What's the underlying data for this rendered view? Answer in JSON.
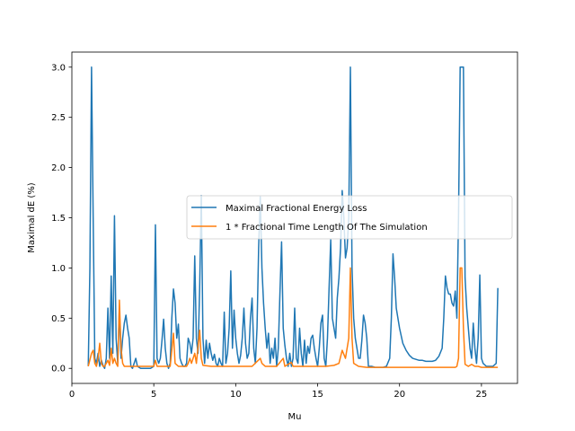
{
  "chart_data": {
    "type": "line",
    "title": "",
    "xlabel": "Mu",
    "ylabel": "Maximal dE (%)",
    "xlim": [
      0,
      27.2
    ],
    "ylim": [
      -0.15,
      3.15
    ],
    "xticks": [
      0,
      5,
      10,
      15,
      20,
      25
    ],
    "xtick_labels": [
      "0",
      "5",
      "10",
      "15",
      "20",
      "25"
    ],
    "yticks": [
      0.0,
      0.5,
      1.0,
      1.5,
      2.0,
      2.5,
      3.0
    ],
    "ytick_labels": [
      "0.0",
      "0.5",
      "1.0",
      "1.5",
      "2.0",
      "2.5",
      "3.0"
    ],
    "grid": false,
    "legend_position": "center-right",
    "series": [
      {
        "name": "Maximal Fractional Energy Loss",
        "color": "#1f77b4",
        "points": [
          [
            1.0,
            0.02
          ],
          [
            1.1,
            1.0
          ],
          [
            1.2,
            3.0
          ],
          [
            1.3,
            1.5
          ],
          [
            1.4,
            0.1
          ],
          [
            1.5,
            0.05
          ],
          [
            1.6,
            0.15
          ],
          [
            1.7,
            0.02
          ],
          [
            1.8,
            0.08
          ],
          [
            1.9,
            0.03
          ],
          [
            2.0,
            0.0
          ],
          [
            2.1,
            0.1
          ],
          [
            2.2,
            0.6
          ],
          [
            2.3,
            0.1
          ],
          [
            2.4,
            0.92
          ],
          [
            2.5,
            0.15
          ],
          [
            2.6,
            1.52
          ],
          [
            2.7,
            0.3
          ],
          [
            2.8,
            0.05
          ],
          [
            2.9,
            0.6
          ],
          [
            3.0,
            0.1
          ],
          [
            3.1,
            0.3
          ],
          [
            3.2,
            0.45
          ],
          [
            3.3,
            0.53
          ],
          [
            3.4,
            0.4
          ],
          [
            3.5,
            0.3
          ],
          [
            3.6,
            0.02
          ],
          [
            3.7,
            0.0
          ],
          [
            3.8,
            0.05
          ],
          [
            3.9,
            0.1
          ],
          [
            4.0,
            0.02
          ],
          [
            4.2,
            0.0
          ],
          [
            4.5,
            0.0
          ],
          [
            4.8,
            0.0
          ],
          [
            5.0,
            0.02
          ],
          [
            5.1,
            1.43
          ],
          [
            5.2,
            0.1
          ],
          [
            5.3,
            0.05
          ],
          [
            5.4,
            0.1
          ],
          [
            5.5,
            0.28
          ],
          [
            5.6,
            0.49
          ],
          [
            5.7,
            0.2
          ],
          [
            5.8,
            0.05
          ],
          [
            5.9,
            0.0
          ],
          [
            6.0,
            0.05
          ],
          [
            6.1,
            0.5
          ],
          [
            6.2,
            0.79
          ],
          [
            6.3,
            0.65
          ],
          [
            6.4,
            0.3
          ],
          [
            6.5,
            0.44
          ],
          [
            6.6,
            0.1
          ],
          [
            6.7,
            0.05
          ],
          [
            6.8,
            0.02
          ],
          [
            6.9,
            0.02
          ],
          [
            7.0,
            0.05
          ],
          [
            7.1,
            0.3
          ],
          [
            7.2,
            0.25
          ],
          [
            7.3,
            0.15
          ],
          [
            7.4,
            0.3
          ],
          [
            7.5,
            1.12
          ],
          [
            7.6,
            0.3
          ],
          [
            7.7,
            0.15
          ],
          [
            7.8,
            0.8
          ],
          [
            7.9,
            1.72
          ],
          [
            8.0,
            0.3
          ],
          [
            8.1,
            0.05
          ],
          [
            8.2,
            0.28
          ],
          [
            8.3,
            0.1
          ],
          [
            8.4,
            0.25
          ],
          [
            8.5,
            0.15
          ],
          [
            8.6,
            0.08
          ],
          [
            8.7,
            0.14
          ],
          [
            8.8,
            0.05
          ],
          [
            8.9,
            0.02
          ],
          [
            9.0,
            0.1
          ],
          [
            9.1,
            0.05
          ],
          [
            9.2,
            0.02
          ],
          [
            9.3,
            0.56
          ],
          [
            9.4,
            0.05
          ],
          [
            9.5,
            0.15
          ],
          [
            9.6,
            0.4
          ],
          [
            9.7,
            0.97
          ],
          [
            9.8,
            0.2
          ],
          [
            9.9,
            0.58
          ],
          [
            10.0,
            0.3
          ],
          [
            10.1,
            0.15
          ],
          [
            10.2,
            0.05
          ],
          [
            10.3,
            0.13
          ],
          [
            10.4,
            0.3
          ],
          [
            10.5,
            0.6
          ],
          [
            10.6,
            0.25
          ],
          [
            10.7,
            0.1
          ],
          [
            10.8,
            0.15
          ],
          [
            10.9,
            0.5
          ],
          [
            11.0,
            0.7
          ],
          [
            11.1,
            0.2
          ],
          [
            11.2,
            0.05
          ],
          [
            11.3,
            0.4
          ],
          [
            11.4,
            1.2
          ],
          [
            11.5,
            1.71
          ],
          [
            11.6,
            1.0
          ],
          [
            11.7,
            0.65
          ],
          [
            11.8,
            0.4
          ],
          [
            11.9,
            0.2
          ],
          [
            12.0,
            0.35
          ],
          [
            12.1,
            0.05
          ],
          [
            12.2,
            0.2
          ],
          [
            12.3,
            0.1
          ],
          [
            12.4,
            0.3
          ],
          [
            12.5,
            0.02
          ],
          [
            12.6,
            0.2
          ],
          [
            12.7,
            0.75
          ],
          [
            12.8,
            1.26
          ],
          [
            12.9,
            0.4
          ],
          [
            13.0,
            0.23
          ],
          [
            13.1,
            0.1
          ],
          [
            13.2,
            0.02
          ],
          [
            13.3,
            0.15
          ],
          [
            13.4,
            0.02
          ],
          [
            13.5,
            0.1
          ],
          [
            13.6,
            0.6
          ],
          [
            13.7,
            0.1
          ],
          [
            13.8,
            0.05
          ],
          [
            13.9,
            0.4
          ],
          [
            14.0,
            0.15
          ],
          [
            14.1,
            0.02
          ],
          [
            14.2,
            0.28
          ],
          [
            14.3,
            0.05
          ],
          [
            14.4,
            0.22
          ],
          [
            14.5,
            0.15
          ],
          [
            14.6,
            0.3
          ],
          [
            14.7,
            0.33
          ],
          [
            14.8,
            0.2
          ],
          [
            14.9,
            0.1
          ],
          [
            15.0,
            0.02
          ],
          [
            15.1,
            0.2
          ],
          [
            15.2,
            0.45
          ],
          [
            15.3,
            0.53
          ],
          [
            15.4,
            0.1
          ],
          [
            15.5,
            0.02
          ],
          [
            15.6,
            0.3
          ],
          [
            15.7,
            0.8
          ],
          [
            15.8,
            1.28
          ],
          [
            15.9,
            0.5
          ],
          [
            16.0,
            0.4
          ],
          [
            16.1,
            0.3
          ],
          [
            16.2,
            0.7
          ],
          [
            16.3,
            0.9
          ],
          [
            16.4,
            1.2
          ],
          [
            16.5,
            1.77
          ],
          [
            16.6,
            1.5
          ],
          [
            16.7,
            1.1
          ],
          [
            16.8,
            1.2
          ],
          [
            16.9,
            1.5
          ],
          [
            17.0,
            3.0
          ],
          [
            17.1,
            1.0
          ],
          [
            17.2,
            0.5
          ],
          [
            17.3,
            0.3
          ],
          [
            17.4,
            0.2
          ],
          [
            17.5,
            0.1
          ],
          [
            17.6,
            0.1
          ],
          [
            17.7,
            0.28
          ],
          [
            17.8,
            0.53
          ],
          [
            17.9,
            0.45
          ],
          [
            18.0,
            0.3
          ],
          [
            18.1,
            0.02
          ],
          [
            18.3,
            0.02
          ],
          [
            18.5,
            0.01
          ],
          [
            18.8,
            0.01
          ],
          [
            19.0,
            0.01
          ],
          [
            19.2,
            0.02
          ],
          [
            19.4,
            0.1
          ],
          [
            19.5,
            0.5
          ],
          [
            19.6,
            1.14
          ],
          [
            19.7,
            0.9
          ],
          [
            19.8,
            0.6
          ],
          [
            20.0,
            0.4
          ],
          [
            20.2,
            0.25
          ],
          [
            20.4,
            0.18
          ],
          [
            20.6,
            0.13
          ],
          [
            20.8,
            0.1
          ],
          [
            21.0,
            0.09
          ],
          [
            21.2,
            0.08
          ],
          [
            21.4,
            0.08
          ],
          [
            21.6,
            0.07
          ],
          [
            21.8,
            0.07
          ],
          [
            22.0,
            0.07
          ],
          [
            22.2,
            0.08
          ],
          [
            22.4,
            0.12
          ],
          [
            22.6,
            0.2
          ],
          [
            22.7,
            0.5
          ],
          [
            22.8,
            0.92
          ],
          [
            22.9,
            0.8
          ],
          [
            23.0,
            0.74
          ],
          [
            23.1,
            0.74
          ],
          [
            23.2,
            0.65
          ],
          [
            23.3,
            0.62
          ],
          [
            23.4,
            0.77
          ],
          [
            23.5,
            0.5
          ],
          [
            23.6,
            1.5
          ],
          [
            23.7,
            3.0
          ],
          [
            23.8,
            3.0
          ],
          [
            23.9,
            3.0
          ],
          [
            24.0,
            0.9
          ],
          [
            24.1,
            0.6
          ],
          [
            24.2,
            0.4
          ],
          [
            24.3,
            0.2
          ],
          [
            24.4,
            0.1
          ],
          [
            24.5,
            0.45
          ],
          [
            24.6,
            0.2
          ],
          [
            24.7,
            0.05
          ],
          [
            24.8,
            0.3
          ],
          [
            24.9,
            0.93
          ],
          [
            25.0,
            0.1
          ],
          [
            25.1,
            0.05
          ],
          [
            25.3,
            0.02
          ],
          [
            25.5,
            0.02
          ],
          [
            25.7,
            0.02
          ],
          [
            25.9,
            0.05
          ],
          [
            26.0,
            0.8
          ]
        ]
      },
      {
        "name": "1 * Fractional Time Length Of The Simulation",
        "color": "#ff7f0e",
        "points": [
          [
            1.0,
            0.02
          ],
          [
            1.2,
            0.15
          ],
          [
            1.3,
            0.18
          ],
          [
            1.4,
            0.05
          ],
          [
            1.5,
            0.02
          ],
          [
            1.6,
            0.1
          ],
          [
            1.7,
            0.25
          ],
          [
            1.8,
            0.05
          ],
          [
            1.9,
            0.02
          ],
          [
            2.0,
            0.02
          ],
          [
            2.2,
            0.08
          ],
          [
            2.3,
            0.03
          ],
          [
            2.4,
            0.2
          ],
          [
            2.5,
            0.05
          ],
          [
            2.6,
            0.1
          ],
          [
            2.7,
            0.05
          ],
          [
            2.8,
            0.02
          ],
          [
            2.9,
            0.68
          ],
          [
            3.0,
            0.2
          ],
          [
            3.1,
            0.05
          ],
          [
            3.2,
            0.02
          ],
          [
            3.5,
            0.02
          ],
          [
            4.0,
            0.02
          ],
          [
            4.5,
            0.02
          ],
          [
            5.0,
            0.02
          ],
          [
            5.1,
            0.08
          ],
          [
            5.2,
            0.02
          ],
          [
            5.5,
            0.02
          ],
          [
            6.0,
            0.02
          ],
          [
            6.2,
            0.35
          ],
          [
            6.3,
            0.05
          ],
          [
            6.5,
            0.02
          ],
          [
            7.0,
            0.02
          ],
          [
            7.1,
            0.05
          ],
          [
            7.2,
            0.1
          ],
          [
            7.3,
            0.05
          ],
          [
            7.5,
            0.15
          ],
          [
            7.6,
            0.05
          ],
          [
            7.8,
            0.38
          ],
          [
            7.9,
            0.1
          ],
          [
            8.0,
            0.03
          ],
          [
            8.5,
            0.02
          ],
          [
            9.0,
            0.02
          ],
          [
            9.5,
            0.02
          ],
          [
            10.0,
            0.02
          ],
          [
            10.5,
            0.02
          ],
          [
            11.0,
            0.02
          ],
          [
            11.5,
            0.1
          ],
          [
            11.6,
            0.05
          ],
          [
            11.8,
            0.02
          ],
          [
            12.0,
            0.02
          ],
          [
            12.5,
            0.02
          ],
          [
            12.9,
            0.1
          ],
          [
            13.0,
            0.02
          ],
          [
            13.4,
            0.06
          ],
          [
            13.5,
            0.02
          ],
          [
            14.0,
            0.02
          ],
          [
            14.5,
            0.02
          ],
          [
            15.0,
            0.02
          ],
          [
            15.5,
            0.02
          ],
          [
            16.0,
            0.03
          ],
          [
            16.3,
            0.05
          ],
          [
            16.5,
            0.18
          ],
          [
            16.7,
            0.1
          ],
          [
            16.9,
            0.3
          ],
          [
            17.0,
            1.0
          ],
          [
            17.1,
            0.3
          ],
          [
            17.2,
            0.05
          ],
          [
            17.5,
            0.02
          ],
          [
            18.0,
            0.01
          ],
          [
            18.5,
            0.01
          ],
          [
            19.0,
            0.01
          ],
          [
            19.5,
            0.01
          ],
          [
            20.0,
            0.01
          ],
          [
            20.5,
            0.01
          ],
          [
            21.0,
            0.01
          ],
          [
            21.5,
            0.01
          ],
          [
            22.0,
            0.01
          ],
          [
            22.5,
            0.01
          ],
          [
            23.0,
            0.01
          ],
          [
            23.4,
            0.01
          ],
          [
            23.5,
            0.02
          ],
          [
            23.6,
            0.1
          ],
          [
            23.7,
            1.0
          ],
          [
            23.8,
            1.0
          ],
          [
            23.9,
            0.4
          ],
          [
            24.0,
            0.04
          ],
          [
            24.2,
            0.02
          ],
          [
            24.4,
            0.04
          ],
          [
            24.6,
            0.02
          ],
          [
            24.8,
            0.02
          ],
          [
            25.0,
            0.01
          ],
          [
            25.5,
            0.01
          ],
          [
            26.0,
            0.01
          ]
        ]
      }
    ]
  }
}
